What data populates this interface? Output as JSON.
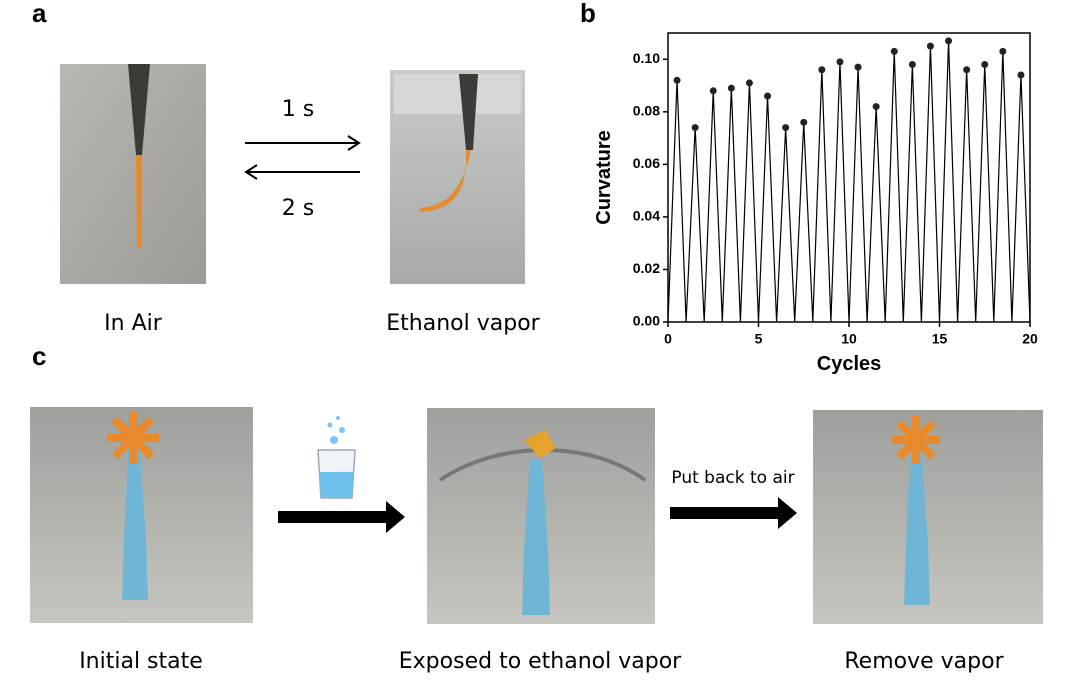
{
  "panels": {
    "a": {
      "label": "a",
      "forward_time": "1 s",
      "backward_time": "2 s",
      "left_caption": "In Air",
      "right_caption": "Ethanol vapor"
    },
    "b": {
      "label": "b"
    },
    "c": {
      "label": "c",
      "left_caption": "Initial state",
      "middle_caption": "Exposed to ethanol vapor",
      "right_caption": "Remove vapor",
      "arrow_label": "Put back to air"
    }
  },
  "chart_data": {
    "type": "line",
    "xlabel": "Cycles",
    "ylabel": "Curvature",
    "x": [
      0,
      0.5,
      1,
      1.5,
      2,
      2.5,
      3,
      3.5,
      4,
      4.5,
      5,
      5.5,
      6,
      6.5,
      7,
      7.5,
      8,
      8.5,
      9,
      9.5,
      10,
      10.5,
      11,
      11.5,
      12,
      12.5,
      13,
      13.5,
      14,
      14.5,
      15,
      15.5,
      16,
      16.5,
      17,
      17.5,
      18,
      18.5,
      19,
      19.5,
      20
    ],
    "values": [
      0,
      0.092,
      0,
      0.074,
      0,
      0.088,
      0,
      0.089,
      0,
      0.091,
      0,
      0.086,
      0,
      0.074,
      0,
      0.076,
      0,
      0.096,
      0,
      0.099,
      0,
      0.097,
      0,
      0.082,
      0,
      0.103,
      0,
      0.098,
      0,
      0.105,
      0,
      0.107,
      0,
      0.096,
      0,
      0.098,
      0,
      0.103,
      0,
      0.094,
      0
    ],
    "color": "#000000",
    "xlim": [
      0,
      20
    ],
    "ylim": [
      0,
      0.11
    ],
    "xticks": [
      0,
      5,
      10,
      15,
      20
    ],
    "yticks": [
      {
        "value": 0,
        "label": "0.00"
      },
      {
        "value": 0.02,
        "label": "0.02"
      },
      {
        "value": 0.04,
        "label": "0.04"
      },
      {
        "value": 0.06,
        "label": "0.06"
      },
      {
        "value": 0.08,
        "label": "0.08"
      },
      {
        "value": 0.1,
        "label": "0.10"
      }
    ]
  }
}
